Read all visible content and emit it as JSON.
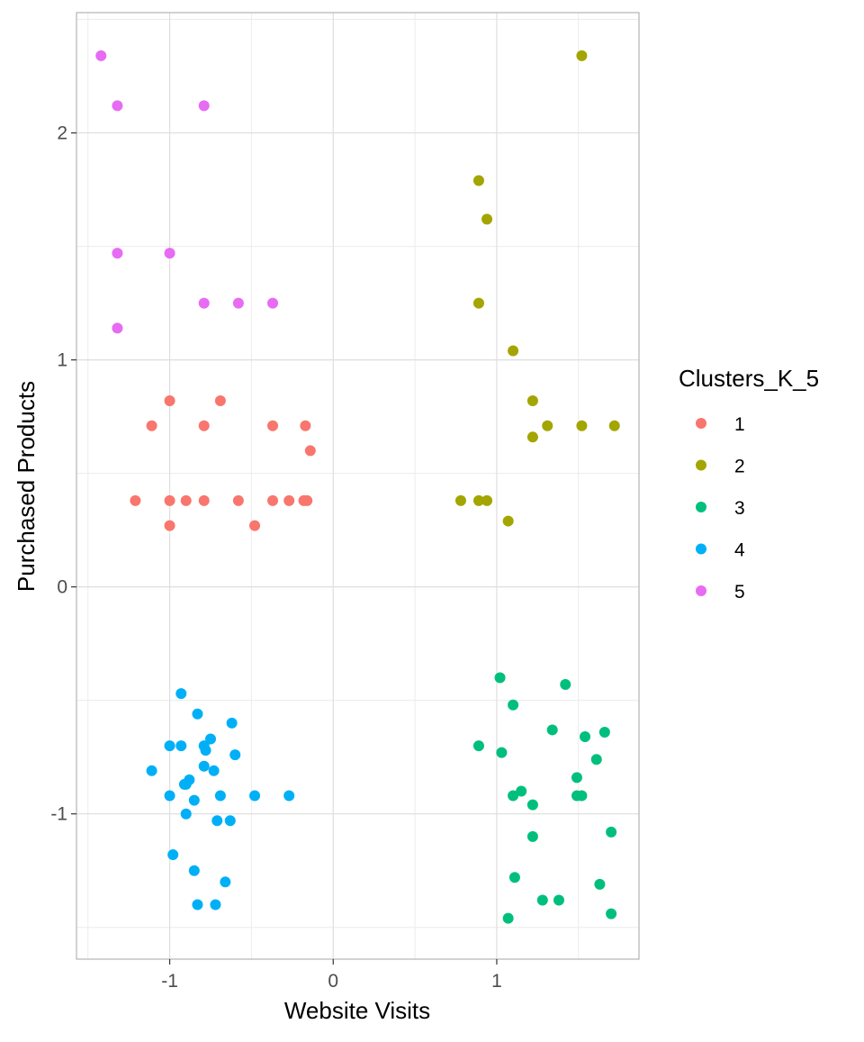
{
  "chart_data": {
    "type": "scatter",
    "title": "",
    "xlabel": "Website Visits",
    "ylabel": "Purchased Products",
    "xlim": [
      -1.57,
      1.87
    ],
    "ylim": [
      -1.64,
      2.53
    ],
    "xticks": [
      -1,
      0,
      1
    ],
    "yticks": [
      -1,
      0,
      1,
      2
    ],
    "xtick_labels": [
      "-1",
      "0",
      "1"
    ],
    "ytick_labels": [
      "-1",
      "0",
      "1",
      "2"
    ],
    "grid": true,
    "legend": {
      "title": "Clusters_K_5",
      "placement": "right"
    },
    "series": [
      {
        "name": "1",
        "color": "#F8766D",
        "points": [
          [
            -1.11,
            0.71
          ],
          [
            -1.0,
            0.82
          ],
          [
            -0.69,
            0.82
          ],
          [
            -0.79,
            0.71
          ],
          [
            -0.37,
            0.71
          ],
          [
            -0.17,
            0.71
          ],
          [
            -0.14,
            0.6
          ],
          [
            -1.21,
            0.38
          ],
          [
            -1.0,
            0.38
          ],
          [
            -0.9,
            0.38
          ],
          [
            -0.79,
            0.38
          ],
          [
            -0.58,
            0.38
          ],
          [
            -0.37,
            0.38
          ],
          [
            -0.27,
            0.38
          ],
          [
            -0.18,
            0.38
          ],
          [
            -0.16,
            0.38
          ],
          [
            -1.0,
            0.27
          ],
          [
            -0.48,
            0.27
          ]
        ]
      },
      {
        "name": "2",
        "color": "#A3A500",
        "points": [
          [
            1.52,
            2.34
          ],
          [
            0.89,
            1.79
          ],
          [
            0.94,
            1.62
          ],
          [
            0.89,
            1.25
          ],
          [
            1.1,
            1.04
          ],
          [
            1.22,
            0.82
          ],
          [
            1.31,
            0.71
          ],
          [
            1.52,
            0.71
          ],
          [
            1.72,
            0.71
          ],
          [
            1.22,
            0.66
          ],
          [
            0.78,
            0.38
          ],
          [
            0.89,
            0.38
          ],
          [
            0.94,
            0.38
          ],
          [
            1.07,
            0.29
          ]
        ]
      },
      {
        "name": "3",
        "color": "#00BF7D",
        "points": [
          [
            1.02,
            -0.4
          ],
          [
            1.42,
            -0.43
          ],
          [
            1.1,
            -0.52
          ],
          [
            1.34,
            -0.63
          ],
          [
            1.66,
            -0.64
          ],
          [
            1.54,
            -0.66
          ],
          [
            0.89,
            -0.7
          ],
          [
            1.03,
            -0.73
          ],
          [
            1.61,
            -0.76
          ],
          [
            1.49,
            -0.84
          ],
          [
            1.15,
            -0.9
          ],
          [
            1.1,
            -0.92
          ],
          [
            1.49,
            -0.92
          ],
          [
            1.52,
            -0.92
          ],
          [
            1.22,
            -0.96
          ],
          [
            1.22,
            -1.1
          ],
          [
            1.7,
            -1.08
          ],
          [
            1.11,
            -1.28
          ],
          [
            1.63,
            -1.31
          ],
          [
            1.28,
            -1.38
          ],
          [
            1.38,
            -1.38
          ],
          [
            1.07,
            -1.46
          ],
          [
            1.7,
            -1.44
          ]
        ]
      },
      {
        "name": "4",
        "color": "#00B0F6",
        "points": [
          [
            -0.93,
            -0.47
          ],
          [
            -0.83,
            -0.56
          ],
          [
            -0.62,
            -0.6
          ],
          [
            -0.75,
            -0.67
          ],
          [
            -1.0,
            -0.7
          ],
          [
            -0.93,
            -0.7
          ],
          [
            -0.79,
            -0.7
          ],
          [
            -0.78,
            -0.72
          ],
          [
            -0.6,
            -0.74
          ],
          [
            -1.11,
            -0.81
          ],
          [
            -0.79,
            -0.79
          ],
          [
            -0.73,
            -0.81
          ],
          [
            -0.88,
            -0.85
          ],
          [
            -0.9,
            -0.87
          ],
          [
            -0.91,
            -0.87
          ],
          [
            -1.0,
            -0.92
          ],
          [
            -0.69,
            -0.92
          ],
          [
            -0.48,
            -0.92
          ],
          [
            -0.27,
            -0.92
          ],
          [
            -0.85,
            -0.94
          ],
          [
            -0.9,
            -1.0
          ],
          [
            -0.71,
            -1.03
          ],
          [
            -0.63,
            -1.03
          ],
          [
            -0.98,
            -1.18
          ],
          [
            -0.85,
            -1.25
          ],
          [
            -0.66,
            -1.3
          ],
          [
            -0.72,
            -1.4
          ],
          [
            -0.83,
            -1.4
          ]
        ]
      },
      {
        "name": "5",
        "color": "#E76BF3",
        "points": [
          [
            -1.42,
            2.34
          ],
          [
            -1.32,
            2.12
          ],
          [
            -0.79,
            2.12
          ],
          [
            -1.32,
            1.47
          ],
          [
            -1.0,
            1.47
          ],
          [
            -1.32,
            1.14
          ],
          [
            -0.79,
            1.25
          ],
          [
            -0.58,
            1.25
          ],
          [
            -0.37,
            1.25
          ]
        ]
      }
    ]
  }
}
